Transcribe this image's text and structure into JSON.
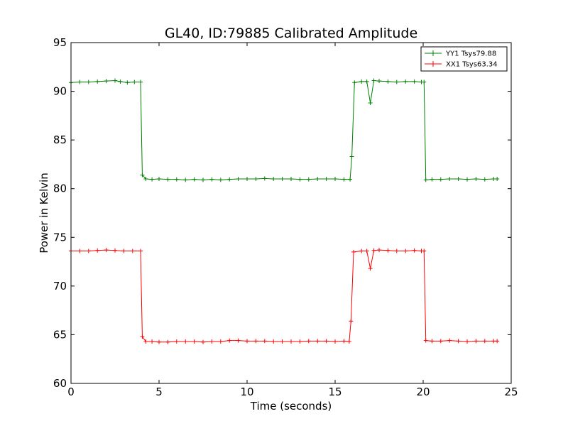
{
  "chart_data": {
    "type": "line",
    "title": "GL40, ID:79885 Calibrated Amplitude",
    "xlabel": "Time (seconds)",
    "ylabel": "Power in Kelvin",
    "xlim": [
      0,
      25
    ],
    "ylim": [
      60,
      95
    ],
    "xticks": [
      0,
      5,
      10,
      15,
      20,
      25
    ],
    "yticks": [
      60,
      65,
      70,
      75,
      80,
      85,
      90,
      95
    ],
    "grid": false,
    "legend_position": "top-right",
    "marker": "plus",
    "series": [
      {
        "name": "YY1 Tsys79.88",
        "color": "#008000",
        "points": [
          [
            0,
            90.9
          ],
          [
            0.5,
            90.95
          ],
          [
            1.0,
            90.95
          ],
          [
            1.5,
            91.0
          ],
          [
            2.0,
            91.05
          ],
          [
            2.5,
            91.1
          ],
          [
            2.8,
            91.0
          ],
          [
            3.2,
            90.9
          ],
          [
            3.6,
            90.95
          ],
          [
            3.95,
            90.95
          ],
          [
            4.05,
            81.4
          ],
          [
            4.25,
            81.0
          ],
          [
            4.6,
            80.95
          ],
          [
            5.0,
            81.0
          ],
          [
            5.5,
            80.95
          ],
          [
            6.0,
            80.95
          ],
          [
            6.5,
            80.9
          ],
          [
            7.0,
            80.95
          ],
          [
            7.5,
            80.9
          ],
          [
            8.0,
            80.95
          ],
          [
            8.5,
            80.9
          ],
          [
            9.0,
            80.95
          ],
          [
            9.5,
            81.0
          ],
          [
            10.0,
            81.0
          ],
          [
            10.5,
            81.0
          ],
          [
            11.0,
            81.05
          ],
          [
            11.5,
            81.0
          ],
          [
            12.0,
            81.0
          ],
          [
            12.5,
            81.0
          ],
          [
            13.0,
            80.95
          ],
          [
            13.5,
            80.95
          ],
          [
            14.0,
            81.0
          ],
          [
            14.5,
            81.0
          ],
          [
            15.0,
            81.0
          ],
          [
            15.5,
            80.95
          ],
          [
            15.85,
            80.95
          ],
          [
            15.95,
            83.3
          ],
          [
            16.1,
            90.9
          ],
          [
            16.5,
            91.0
          ],
          [
            16.8,
            91.0
          ],
          [
            17.0,
            88.8
          ],
          [
            17.2,
            91.1
          ],
          [
            17.5,
            91.05
          ],
          [
            18.0,
            91.0
          ],
          [
            18.5,
            90.95
          ],
          [
            19.0,
            91.0
          ],
          [
            19.5,
            91.0
          ],
          [
            19.9,
            90.95
          ],
          [
            20.05,
            90.95
          ],
          [
            20.15,
            80.9
          ],
          [
            20.5,
            80.95
          ],
          [
            21.0,
            80.95
          ],
          [
            21.5,
            81.0
          ],
          [
            22.0,
            81.0
          ],
          [
            22.5,
            80.95
          ],
          [
            23.0,
            81.0
          ],
          [
            23.5,
            80.95
          ],
          [
            24.0,
            81.0
          ],
          [
            24.2,
            81.0
          ]
        ]
      },
      {
        "name": "XX1 Tsys63.34",
        "color": "#ff0000",
        "points": [
          [
            0,
            73.6
          ],
          [
            0.5,
            73.6
          ],
          [
            1.0,
            73.6
          ],
          [
            1.5,
            73.65
          ],
          [
            2.0,
            73.7
          ],
          [
            2.5,
            73.65
          ],
          [
            3.0,
            73.6
          ],
          [
            3.5,
            73.6
          ],
          [
            3.95,
            73.6
          ],
          [
            4.05,
            64.8
          ],
          [
            4.25,
            64.3
          ],
          [
            4.6,
            64.3
          ],
          [
            5.0,
            64.25
          ],
          [
            5.5,
            64.25
          ],
          [
            6.0,
            64.3
          ],
          [
            6.5,
            64.3
          ],
          [
            7.0,
            64.3
          ],
          [
            7.5,
            64.25
          ],
          [
            8.0,
            64.3
          ],
          [
            8.5,
            64.3
          ],
          [
            9.0,
            64.4
          ],
          [
            9.5,
            64.4
          ],
          [
            10.0,
            64.35
          ],
          [
            10.5,
            64.35
          ],
          [
            11.0,
            64.35
          ],
          [
            11.5,
            64.3
          ],
          [
            12.0,
            64.3
          ],
          [
            12.5,
            64.3
          ],
          [
            13.0,
            64.3
          ],
          [
            13.5,
            64.35
          ],
          [
            14.0,
            64.35
          ],
          [
            14.5,
            64.35
          ],
          [
            15.0,
            64.3
          ],
          [
            15.5,
            64.35
          ],
          [
            15.8,
            64.3
          ],
          [
            15.9,
            66.4
          ],
          [
            16.05,
            73.5
          ],
          [
            16.5,
            73.6
          ],
          [
            16.8,
            73.6
          ],
          [
            17.0,
            71.8
          ],
          [
            17.2,
            73.65
          ],
          [
            17.5,
            73.7
          ],
          [
            18.0,
            73.65
          ],
          [
            18.5,
            73.6
          ],
          [
            19.0,
            73.6
          ],
          [
            19.5,
            73.65
          ],
          [
            19.9,
            73.6
          ],
          [
            20.05,
            73.6
          ],
          [
            20.15,
            64.4
          ],
          [
            20.5,
            64.35
          ],
          [
            21.0,
            64.35
          ],
          [
            21.5,
            64.4
          ],
          [
            22.0,
            64.35
          ],
          [
            22.5,
            64.3
          ],
          [
            23.0,
            64.35
          ],
          [
            23.5,
            64.35
          ],
          [
            24.0,
            64.35
          ],
          [
            24.2,
            64.35
          ]
        ]
      }
    ]
  }
}
